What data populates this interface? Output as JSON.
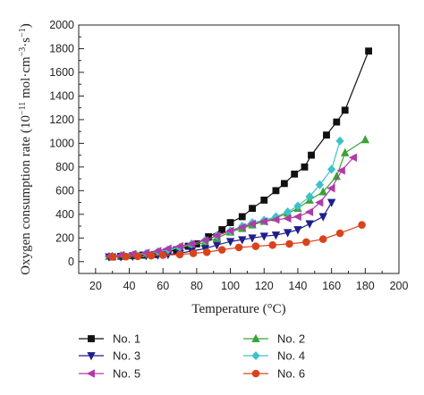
{
  "chart_data": {
    "type": "line",
    "title": "",
    "xlabel": "Temperature (°C)",
    "ylabel_main": "Oxygen consumption rate (10",
    "ylabel_sup1": "−11",
    "ylabel_mid": " mol·cm",
    "ylabel_sup2": "−3",
    "ylabel_mid2": "·s",
    "ylabel_sup3": "−1",
    "ylabel_end": ")",
    "xlim": [
      10,
      200
    ],
    "ylim": [
      -100,
      2000
    ],
    "xticks": [
      20,
      40,
      60,
      80,
      100,
      120,
      140,
      160,
      180,
      200
    ],
    "yticks": [
      0,
      200,
      400,
      600,
      800,
      1000,
      1200,
      1400,
      1600,
      1800,
      2000
    ],
    "grid": false,
    "legend_position": "bottom",
    "series": [
      {
        "name": "No. 1",
        "color": "#111111",
        "marker": "square",
        "x": [
          30,
          35,
          42,
          48,
          55,
          62,
          68,
          75,
          80,
          87,
          95,
          100,
          107,
          113,
          120,
          127,
          132,
          138,
          144,
          148,
          157,
          163,
          168,
          182
        ],
        "y": [
          40,
          45,
          50,
          55,
          60,
          80,
          100,
          130,
          150,
          210,
          270,
          330,
          380,
          450,
          520,
          600,
          660,
          740,
          800,
          900,
          1070,
          1180,
          1280,
          1780
        ]
      },
      {
        "name": "No. 2",
        "color": "#3aa335",
        "marker": "triangle-up",
        "x": [
          28,
          35,
          42,
          50,
          57,
          63,
          70,
          77,
          85,
          92,
          100,
          107,
          113,
          120,
          127,
          134,
          140,
          147,
          155,
          163,
          168,
          180
        ],
        "y": [
          45,
          50,
          55,
          65,
          75,
          95,
          120,
          140,
          160,
          200,
          250,
          280,
          310,
          340,
          370,
          410,
          450,
          520,
          590,
          720,
          920,
          1030
        ]
      },
      {
        "name": "No. 3",
        "color": "#1f1f8a",
        "marker": "triangle-down",
        "x": [
          28,
          35,
          42,
          50,
          57,
          63,
          70,
          77,
          85,
          92,
          100,
          107,
          113,
          120,
          127,
          134,
          140,
          147,
          155,
          160
        ],
        "y": [
          40,
          40,
          45,
          50,
          55,
          60,
          70,
          90,
          110,
          140,
          170,
          185,
          200,
          215,
          225,
          245,
          270,
          320,
          380,
          500
        ]
      },
      {
        "name": "No. 4",
        "color": "#3ec1c9",
        "marker": "diamond",
        "x": [
          30,
          37,
          44,
          50,
          57,
          63,
          70,
          77,
          85,
          92,
          100,
          107,
          113,
          120,
          127,
          134,
          140,
          147,
          153,
          160,
          165
        ],
        "y": [
          45,
          50,
          60,
          70,
          85,
          100,
          120,
          150,
          180,
          220,
          260,
          300,
          330,
          350,
          380,
          420,
          470,
          550,
          650,
          780,
          1020
        ]
      },
      {
        "name": "No. 5",
        "color": "#b03aa8",
        "marker": "triangle-left",
        "x": [
          28,
          35,
          42,
          50,
          57,
          63,
          70,
          77,
          85,
          92,
          100,
          107,
          113,
          120,
          127,
          134,
          140,
          147,
          153,
          160,
          166,
          173
        ],
        "y": [
          45,
          55,
          65,
          75,
          90,
          110,
          130,
          150,
          180,
          220,
          260,
          290,
          320,
          340,
          355,
          365,
          380,
          420,
          500,
          620,
          770,
          880
        ]
      },
      {
        "name": "No. 6",
        "color": "#d9431c",
        "marker": "circle",
        "x": [
          30,
          38,
          45,
          53,
          60,
          70,
          78,
          86,
          95,
          105,
          115,
          125,
          135,
          145,
          155,
          165,
          178
        ],
        "y": [
          40,
          42,
          45,
          50,
          55,
          60,
          70,
          80,
          100,
          120,
          130,
          140,
          150,
          165,
          190,
          240,
          310
        ]
      }
    ]
  }
}
